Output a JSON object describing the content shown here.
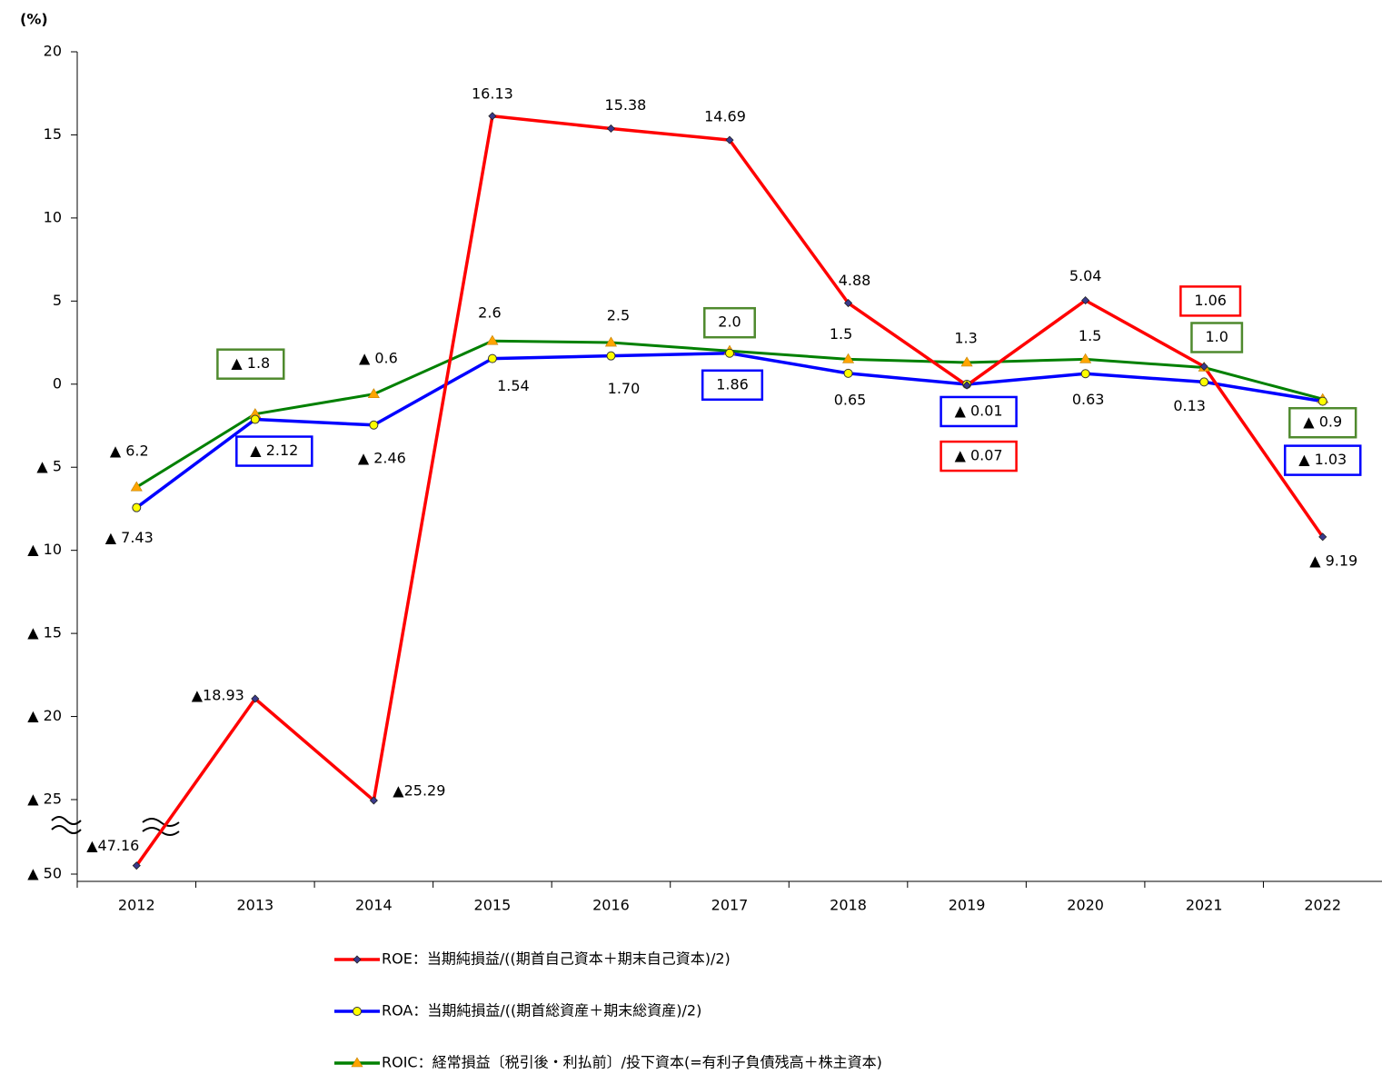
{
  "chart_data": {
    "type": "line",
    "y_label": "(%)",
    "categories": [
      "2012",
      "2013",
      "2014",
      "2015",
      "2016",
      "2017",
      "2018",
      "2019",
      "2020",
      "2021",
      "2022"
    ],
    "ylim": [
      -50,
      20
    ],
    "axis_break": -25,
    "yticks": [
      20,
      15,
      10,
      5,
      0,
      {
        "value": -5,
        "label": "▲ 5"
      },
      {
        "value": -10,
        "label": "▲ 10"
      },
      {
        "value": -15,
        "label": "▲ 15"
      },
      {
        "value": -20,
        "label": "▲ 20"
      },
      {
        "value": -25,
        "label": "▲ 25"
      },
      {
        "value": -50,
        "label": "▲ 50"
      }
    ],
    "series": [
      {
        "name": "ROE：当期純損益/((期首自己資本＋期末自己資本)/2)",
        "color": "#ff0000",
        "marker": "diamond",
        "marker_color": "#3a3a8c",
        "values": [
          -47.16,
          -18.93,
          -25.29,
          16.13,
          15.38,
          14.69,
          4.88,
          -0.07,
          5.04,
          1.06,
          -9.19
        ],
        "value_labels": [
          "▲47.16",
          "▲18.93",
          "▲25.29",
          "16.13",
          "15.38",
          "14.69",
          "4.88",
          "▲ 0.07",
          "5.04",
          "1.06",
          "▲ 9.19"
        ],
        "label_box": [
          false,
          false,
          false,
          false,
          false,
          false,
          false,
          true,
          false,
          true,
          false
        ]
      },
      {
        "name": "ROA：当期純損益/((期首総資産＋期末総資産)/2)",
        "color": "#0000ff",
        "marker": "circle",
        "marker_color": "#ffff00",
        "values": [
          -7.43,
          -2.12,
          -2.46,
          1.54,
          1.7,
          1.86,
          0.65,
          -0.01,
          0.63,
          0.13,
          -1.03
        ],
        "value_labels": [
          "▲ 7.43",
          "▲ 2.12",
          "▲ 2.46",
          "1.54",
          "1.70",
          "1.86",
          "0.65",
          "▲ 0.01",
          "0.63",
          "0.13",
          "▲ 1.03"
        ],
        "label_box": [
          false,
          true,
          false,
          false,
          false,
          true,
          false,
          true,
          false,
          false,
          true
        ]
      },
      {
        "name": "ROIC：経常損益〔税引後・利払前〕/投下資本(=有利子負債残高＋株主資本)",
        "color": "#008000",
        "marker": "triangle",
        "marker_color": "#ffa500",
        "values": [
          -6.2,
          -1.8,
          -0.6,
          2.6,
          2.5,
          2.0,
          1.5,
          1.3,
          1.5,
          1.0,
          -0.9
        ],
        "value_labels": [
          "▲ 6.2",
          "▲ 1.8",
          "▲ 0.6",
          "2.6",
          "2.5",
          "2.0",
          "1.5",
          "1.3",
          "1.5",
          "1.0",
          "▲ 0.9"
        ],
        "label_box": [
          false,
          true,
          false,
          false,
          false,
          true,
          false,
          false,
          false,
          true,
          true
        ]
      }
    ]
  }
}
